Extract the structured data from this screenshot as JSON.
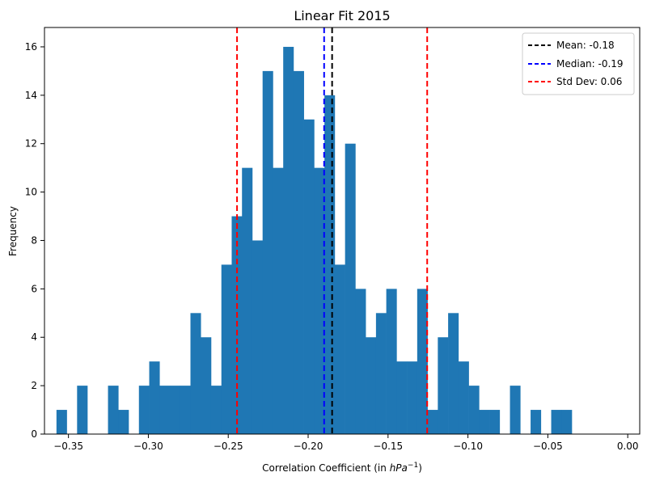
{
  "chart_data": {
    "type": "histogram",
    "title": "Linear Fit 2015",
    "xlabel_prefix": "Correlation Coefficient (in ",
    "xlabel_unit": "hPa",
    "xlabel_exp": "−1",
    "xlabel_suffix": ")",
    "ylabel": "Frequency",
    "xlim": [
      -0.365,
      0.0075
    ],
    "ylim": [
      0,
      16.8
    ],
    "bin_start": -0.3575,
    "bin_width": 0.00645,
    "counts": [
      1,
      0,
      2,
      0,
      0,
      2,
      1,
      0,
      2,
      3,
      2,
      2,
      2,
      5,
      4,
      2,
      7,
      9,
      11,
      8,
      15,
      11,
      16,
      15,
      13,
      11,
      14,
      7,
      12,
      6,
      4,
      5,
      6,
      3,
      3,
      6,
      1,
      4,
      5,
      3,
      2,
      1,
      1,
      0,
      2,
      0,
      1,
      0,
      1,
      1
    ],
    "bar_color": "#1f77b4",
    "xticks": [
      -0.35,
      -0.3,
      -0.25,
      -0.2,
      -0.15,
      -0.1,
      -0.05,
      0.0
    ],
    "xtick_labels": [
      "−0.35",
      "−0.30",
      "−0.25",
      "−0.20",
      "−0.15",
      "−0.10",
      "−0.05",
      "0.00"
    ],
    "yticks": [
      0,
      2,
      4,
      6,
      8,
      10,
      12,
      14,
      16
    ],
    "ytick_labels": [
      "0",
      "2",
      "4",
      "6",
      "8",
      "10",
      "12",
      "14",
      "16"
    ],
    "vlines": [
      {
        "x": -0.185,
        "color": "#000000"
      },
      {
        "x": -0.19,
        "color": "#0000ff"
      },
      {
        "x": -0.2445,
        "color": "#ff0000"
      },
      {
        "x": -0.1255,
        "color": "#ff0000"
      }
    ],
    "legend": {
      "placement": "top-right",
      "entries": [
        {
          "label": "Mean: -0.18",
          "color": "#000000"
        },
        {
          "label": "Median: -0.19",
          "color": "#0000ff"
        },
        {
          "label": "Std Dev: 0.06",
          "color": "#ff0000"
        }
      ]
    }
  }
}
